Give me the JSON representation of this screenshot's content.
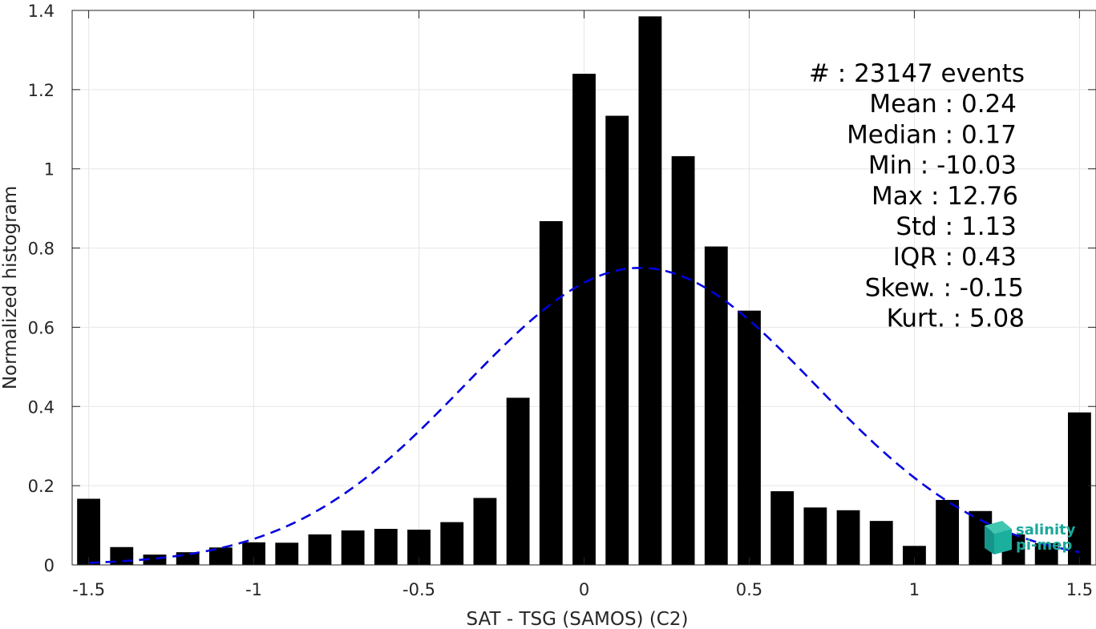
{
  "chart_data": {
    "type": "bar",
    "xlabel": "SAT - TSG (SAMOS) (C2)",
    "ylabel": "Normalized histogram",
    "xlim": [
      -1.55,
      1.55
    ],
    "ylim": [
      0,
      1.4
    ],
    "grid": true,
    "xticks": [
      "-1.5",
      "-1",
      "-0.5",
      "0",
      "0.5",
      "1",
      "1.5"
    ],
    "yticks": [
      "0",
      "0.2",
      "0.4",
      "0.6",
      "0.8",
      "1",
      "1.2",
      "1.4"
    ],
    "bar_color": "#000000",
    "x": [
      -1.5,
      -1.4,
      -1.3,
      -1.2,
      -1.1,
      -1.0,
      -0.9,
      -0.8,
      -0.7,
      -0.6,
      -0.5,
      -0.4,
      -0.3,
      -0.2,
      -0.1,
      0.0,
      0.1,
      0.2,
      0.3,
      0.4,
      0.5,
      0.6,
      0.7,
      0.8,
      0.9,
      1.0,
      1.1,
      1.2,
      1.3,
      1.4,
      1.5
    ],
    "values": [
      0.167,
      0.045,
      0.026,
      0.032,
      0.044,
      0.057,
      0.056,
      0.077,
      0.087,
      0.091,
      0.089,
      0.108,
      0.169,
      0.422,
      0.868,
      1.24,
      1.134,
      1.385,
      1.032,
      0.804,
      0.642,
      0.186,
      0.145,
      0.138,
      0.111,
      0.048,
      0.164,
      0.136,
      0.077,
      0.055,
      0.385
    ],
    "fit_curve": {
      "type": "gaussian",
      "color": "#0000e0",
      "style": "dashed",
      "mean": 0.17,
      "std": 0.53,
      "peak": 0.75,
      "x_range": [
        -1.5,
        1.5
      ]
    }
  },
  "stats": [
    {
      "label": "#",
      "sep": " : ",
      "value": "23147 events"
    },
    {
      "label": "Mean",
      "sep": " : ",
      "value": "0.24"
    },
    {
      "label": "Median",
      "sep": " : ",
      "value": "0.17"
    },
    {
      "label": "Min",
      "sep": " : ",
      "value": "-10.03"
    },
    {
      "label": "Max",
      "sep": " : ",
      "value": "12.76"
    },
    {
      "label": "Std",
      "sep": " : ",
      "value": "1.13"
    },
    {
      "label": "IQR",
      "sep": " : ",
      "value": "0.43"
    },
    {
      "label": "Skew.",
      "sep": " : ",
      "value": "-0.15"
    },
    {
      "label": "Kurt.",
      "sep": " : ",
      "value": "5.08"
    }
  ],
  "logo": {
    "line1": "salinity",
    "line2": "pi-mep",
    "color": "#1aa89a"
  }
}
